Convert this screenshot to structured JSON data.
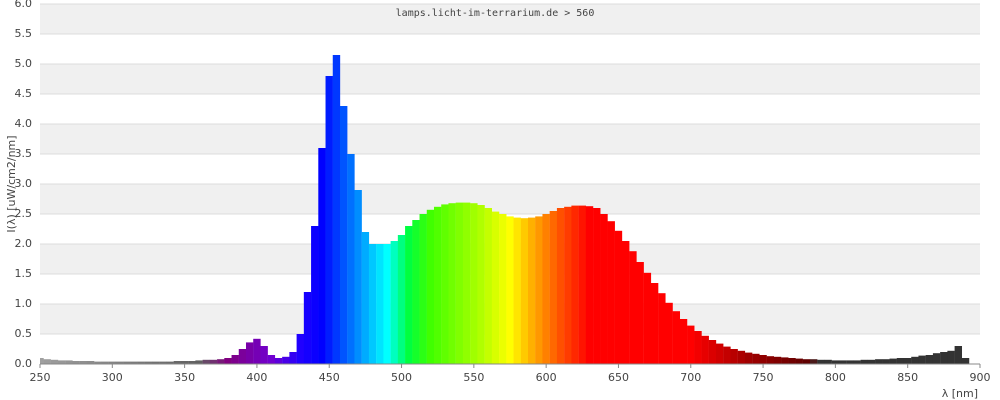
{
  "chart_data": {
    "type": "spectrum",
    "title": "lamps.licht-im-terrarium.de > 560",
    "y_label": "I(λ)  [uW/cm2/nm]",
    "x_label": "λ [nm]",
    "x": [
      250,
      255,
      260,
      265,
      270,
      275,
      280,
      285,
      290,
      295,
      300,
      305,
      310,
      315,
      320,
      325,
      330,
      335,
      340,
      345,
      350,
      355,
      360,
      365,
      370,
      375,
      380,
      385,
      390,
      395,
      400,
      405,
      410,
      415,
      420,
      425,
      430,
      435,
      440,
      445,
      450,
      455,
      460,
      465,
      470,
      475,
      480,
      485,
      490,
      495,
      500,
      505,
      510,
      515,
      520,
      525,
      530,
      535,
      540,
      545,
      550,
      555,
      560,
      565,
      570,
      575,
      580,
      585,
      590,
      595,
      600,
      605,
      610,
      615,
      620,
      625,
      630,
      635,
      640,
      645,
      650,
      655,
      660,
      665,
      670,
      675,
      680,
      685,
      690,
      695,
      700,
      705,
      710,
      715,
      720,
      725,
      730,
      735,
      740,
      745,
      750,
      755,
      760,
      765,
      770,
      775,
      780,
      785,
      790,
      795,
      800,
      805,
      810,
      815,
      820,
      825,
      830,
      835,
      840,
      845,
      850,
      855,
      860,
      865,
      870,
      875,
      880,
      885,
      890,
      895,
      900
    ],
    "values": [
      0.1,
      0.08,
      0.07,
      0.06,
      0.06,
      0.05,
      0.05,
      0.05,
      0.04,
      0.04,
      0.04,
      0.04,
      0.04,
      0.04,
      0.04,
      0.04,
      0.04,
      0.04,
      0.04,
      0.05,
      0.05,
      0.05,
      0.06,
      0.07,
      0.07,
      0.08,
      0.1,
      0.15,
      0.25,
      0.36,
      0.42,
      0.3,
      0.15,
      0.1,
      0.12,
      0.2,
      0.5,
      1.2,
      2.3,
      3.6,
      4.8,
      5.15,
      4.3,
      3.5,
      2.9,
      2.2,
      2.0,
      2.0,
      2.0,
      2.05,
      2.15,
      2.3,
      2.4,
      2.5,
      2.57,
      2.62,
      2.66,
      2.68,
      2.69,
      2.69,
      2.68,
      2.65,
      2.6,
      2.54,
      2.5,
      2.46,
      2.44,
      2.43,
      2.44,
      2.46,
      2.5,
      2.55,
      2.6,
      2.62,
      2.64,
      2.64,
      2.63,
      2.6,
      2.5,
      2.38,
      2.22,
      2.05,
      1.88,
      1.7,
      1.52,
      1.35,
      1.18,
      1.02,
      0.88,
      0.75,
      0.64,
      0.55,
      0.47,
      0.4,
      0.34,
      0.29,
      0.25,
      0.22,
      0.19,
      0.17,
      0.15,
      0.13,
      0.12,
      0.11,
      0.1,
      0.09,
      0.08,
      0.08,
      0.07,
      0.07,
      0.06,
      0.06,
      0.06,
      0.06,
      0.07,
      0.07,
      0.08,
      0.08,
      0.09,
      0.1,
      0.1,
      0.12,
      0.14,
      0.15,
      0.18,
      0.2,
      0.22,
      0.3,
      0.1,
      0,
      0
    ],
    "color_stops": [
      [
        250,
        "#a0a0a0"
      ],
      [
        360,
        "#606060"
      ],
      [
        380,
        "#800080"
      ],
      [
        410,
        "#7000d0"
      ],
      [
        430,
        "#2000ff"
      ],
      [
        445,
        "#0000ff"
      ],
      [
        465,
        "#0070ff"
      ],
      [
        480,
        "#00c8ff"
      ],
      [
        490,
        "#00ffff"
      ],
      [
        505,
        "#00ff40"
      ],
      [
        520,
        "#40ff00"
      ],
      [
        555,
        "#b0ff00"
      ],
      [
        575,
        "#ffff00"
      ],
      [
        590,
        "#ffb000"
      ],
      [
        610,
        "#ff5000"
      ],
      [
        630,
        "#ff0000"
      ],
      [
        700,
        "#ff0000"
      ],
      [
        740,
        "#a00000"
      ],
      [
        780,
        "#600000"
      ],
      [
        790,
        "#333333"
      ],
      [
        900,
        "#333333"
      ]
    ],
    "xlim": [
      250,
      900
    ],
    "xticks": [
      250,
      300,
      350,
      400,
      450,
      500,
      550,
      600,
      650,
      700,
      750,
      800,
      850,
      900
    ],
    "ylim": [
      0,
      6
    ],
    "yticks": [
      {
        "value": 0,
        "label": "0.0"
      },
      0.5,
      {
        "value": 1,
        "label": "1.0"
      },
      1.5,
      {
        "value": 2,
        "label": "2.0"
      },
      2.5,
      {
        "value": 3,
        "label": "3.0"
      },
      3.5,
      {
        "value": 4,
        "label": "4.0"
      },
      4.5,
      {
        "value": 5,
        "label": "5.0"
      },
      5.5,
      {
        "value": 6,
        "label": "6.0"
      }
    ],
    "grid": true
  }
}
